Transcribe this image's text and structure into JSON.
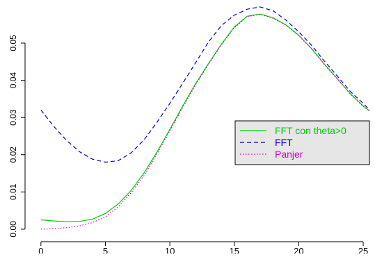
{
  "chart_data": {
    "type": "line",
    "title": "",
    "xlabel": "",
    "ylabel": "",
    "xlim": [
      -0.8,
      25.7
    ],
    "ylim": [
      -0.0002,
      0.0597
    ],
    "x_ticks": [
      0,
      5,
      10,
      15,
      20,
      25
    ],
    "x_tick_labels": [
      "0",
      "5",
      "10",
      "15",
      "20",
      "25"
    ],
    "y_ticks": [
      0.0,
      0.01,
      0.02,
      0.03,
      0.04,
      0.05
    ],
    "y_tick_labels": [
      "0.00",
      "0.01",
      "0.02",
      "0.03",
      "0.04",
      "0.05"
    ],
    "grid": false,
    "legend_placement": "right",
    "legend_background": "#e6e6e6",
    "series": [
      {
        "name": "FFT con theta>0",
        "color": "#00cc00",
        "line_style": "solid",
        "x": [
          0,
          1,
          2,
          3,
          4,
          5,
          6,
          7,
          8,
          9,
          10,
          11,
          12,
          13,
          14,
          15,
          16,
          17,
          18,
          19,
          20,
          21,
          22,
          23,
          24,
          25,
          25.5
        ],
        "y": [
          0.0025,
          0.0022,
          0.002,
          0.0021,
          0.0027,
          0.0042,
          0.0068,
          0.0104,
          0.0151,
          0.0207,
          0.0268,
          0.0331,
          0.0391,
          0.0445,
          0.0497,
          0.0543,
          0.0572,
          0.0578,
          0.0568,
          0.0549,
          0.0521,
          0.0485,
          0.0443,
          0.0404,
          0.0364,
          0.0331,
          0.0318
        ]
      },
      {
        "name": "FFT",
        "color": "#0000cc",
        "line_style": "dashed",
        "x": [
          0,
          1,
          2,
          3,
          4,
          5,
          6,
          7,
          8,
          9,
          10,
          11,
          12,
          13,
          14,
          15,
          16,
          17,
          18,
          19,
          20,
          21,
          22,
          23,
          24,
          25,
          25.5
        ],
        "y": [
          0.032,
          0.0276,
          0.0238,
          0.0208,
          0.0188,
          0.018,
          0.0184,
          0.0205,
          0.024,
          0.0287,
          0.0338,
          0.0392,
          0.0447,
          0.0503,
          0.0547,
          0.0575,
          0.0591,
          0.0597,
          0.0587,
          0.0562,
          0.053,
          0.0494,
          0.0451,
          0.0411,
          0.037,
          0.0338,
          0.032
        ]
      },
      {
        "name": "Panjer",
        "color": "#cc00cc",
        "line_style": "dotted",
        "x": [
          0,
          1,
          2,
          3,
          4,
          5,
          6,
          7,
          8,
          9,
          10,
          11,
          12,
          13,
          14,
          15,
          16,
          17,
          18,
          19,
          20,
          21,
          22,
          23,
          24,
          25,
          25.5
        ],
        "y": [
          0.0,
          0.0001,
          0.0004,
          0.0009,
          0.0018,
          0.0033,
          0.006,
          0.0098,
          0.0144,
          0.0202,
          0.0264,
          0.0327,
          0.0388,
          0.0443,
          0.0495,
          0.0541,
          0.0571,
          0.0577,
          0.0567,
          0.0548,
          0.052,
          0.0484,
          0.0442,
          0.0403,
          0.0363,
          0.033,
          0.0317
        ]
      }
    ]
  }
}
